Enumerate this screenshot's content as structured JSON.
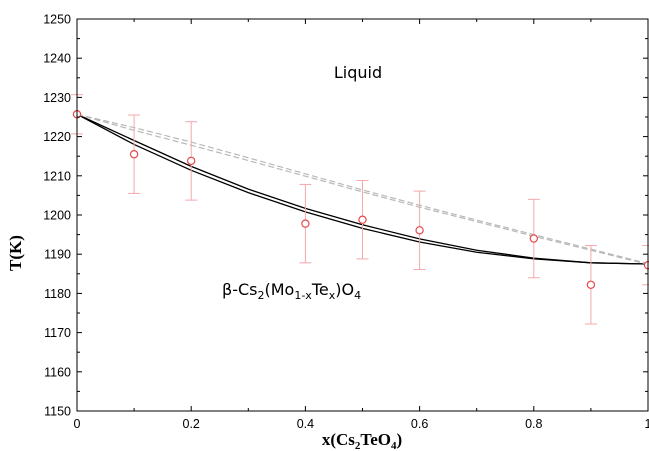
{
  "chart_data": {
    "type": "scatter",
    "xlabel": {
      "base": "x(Cs",
      "sub1": "2",
      "mid": "TeO",
      "sub2": "4",
      "end": ")"
    },
    "ylabel": "T(K)",
    "xlim": [
      0,
      1
    ],
    "ylim": [
      1150,
      1250
    ],
    "xticks": [
      "0",
      "0.2",
      "0.4",
      "0.6",
      "0.8",
      "1"
    ],
    "yticks": [
      "1150",
      "1160",
      "1170",
      "1180",
      "1190",
      "1200",
      "1210",
      "1220",
      "1230",
      "1240",
      "1250"
    ],
    "grid": false,
    "annotations": {
      "liquid": "Liquid",
      "solid": {
        "p1": "β-Cs",
        "s1": "2",
        "p2": "(Mo",
        "s2": "1-x",
        "p3": "Te",
        "s3": "x",
        "p4": ")O",
        "s4": "4"
      }
    },
    "colors": {
      "experimental": "#e8474a",
      "error_bar": "#f4a8aa",
      "solidus": "#000000",
      "liquidus": "#b8b8b8"
    },
    "series": [
      {
        "kind": "points_with_error",
        "x": [
          0,
          0.1,
          0.2,
          0.4,
          0.5,
          0.6,
          0.8,
          0.9,
          1.0
        ],
        "y": [
          1225.7,
          1215.5,
          1213.8,
          1197.8,
          1198.8,
          1196.1,
          1194.0,
          1182.2,
          1187.2
        ],
        "yerr": [
          5.0,
          10.0,
          10.0,
          10.0,
          10.0,
          10.0,
          10.0,
          10.0,
          5.0
        ]
      },
      {
        "kind": "line",
        "style": "solid",
        "x": [
          0,
          0.1,
          0.2,
          0.3,
          0.4,
          0.5,
          0.6,
          0.7,
          0.8,
          0.9,
          1.0
        ],
        "y": [
          1225.7,
          1219.0,
          1212.4,
          1206.6,
          1201.7,
          1197.5,
          1193.9,
          1191.0,
          1189.0,
          1187.8,
          1187.5
        ]
      },
      {
        "kind": "line",
        "style": "solid",
        "x": [
          0,
          0.1,
          0.2,
          0.3,
          0.4,
          0.5,
          0.6,
          0.7,
          0.8,
          0.9,
          1.0
        ],
        "y": [
          1225.7,
          1218.0,
          1211.4,
          1205.7,
          1200.8,
          1196.6,
          1193.1,
          1190.5,
          1188.8,
          1187.8,
          1187.5
        ]
      },
      {
        "kind": "line",
        "style": "dashed",
        "x": [
          0,
          0.1,
          0.2,
          0.3,
          0.4,
          0.5,
          0.6,
          0.7,
          0.8,
          0.9,
          1.0
        ],
        "y": [
          1225.7,
          1222.3,
          1218.6,
          1214.6,
          1210.5,
          1206.4,
          1202.5,
          1198.7,
          1195.0,
          1191.3,
          1187.6
        ]
      },
      {
        "kind": "line",
        "style": "dashed",
        "x": [
          0,
          0.1,
          0.2,
          0.3,
          0.4,
          0.5,
          0.6,
          0.7,
          0.8,
          0.9,
          1.0
        ],
        "y": [
          1225.7,
          1221.6,
          1217.8,
          1213.9,
          1209.9,
          1205.9,
          1202.0,
          1198.3,
          1194.6,
          1191.0,
          1187.4
        ]
      }
    ]
  }
}
